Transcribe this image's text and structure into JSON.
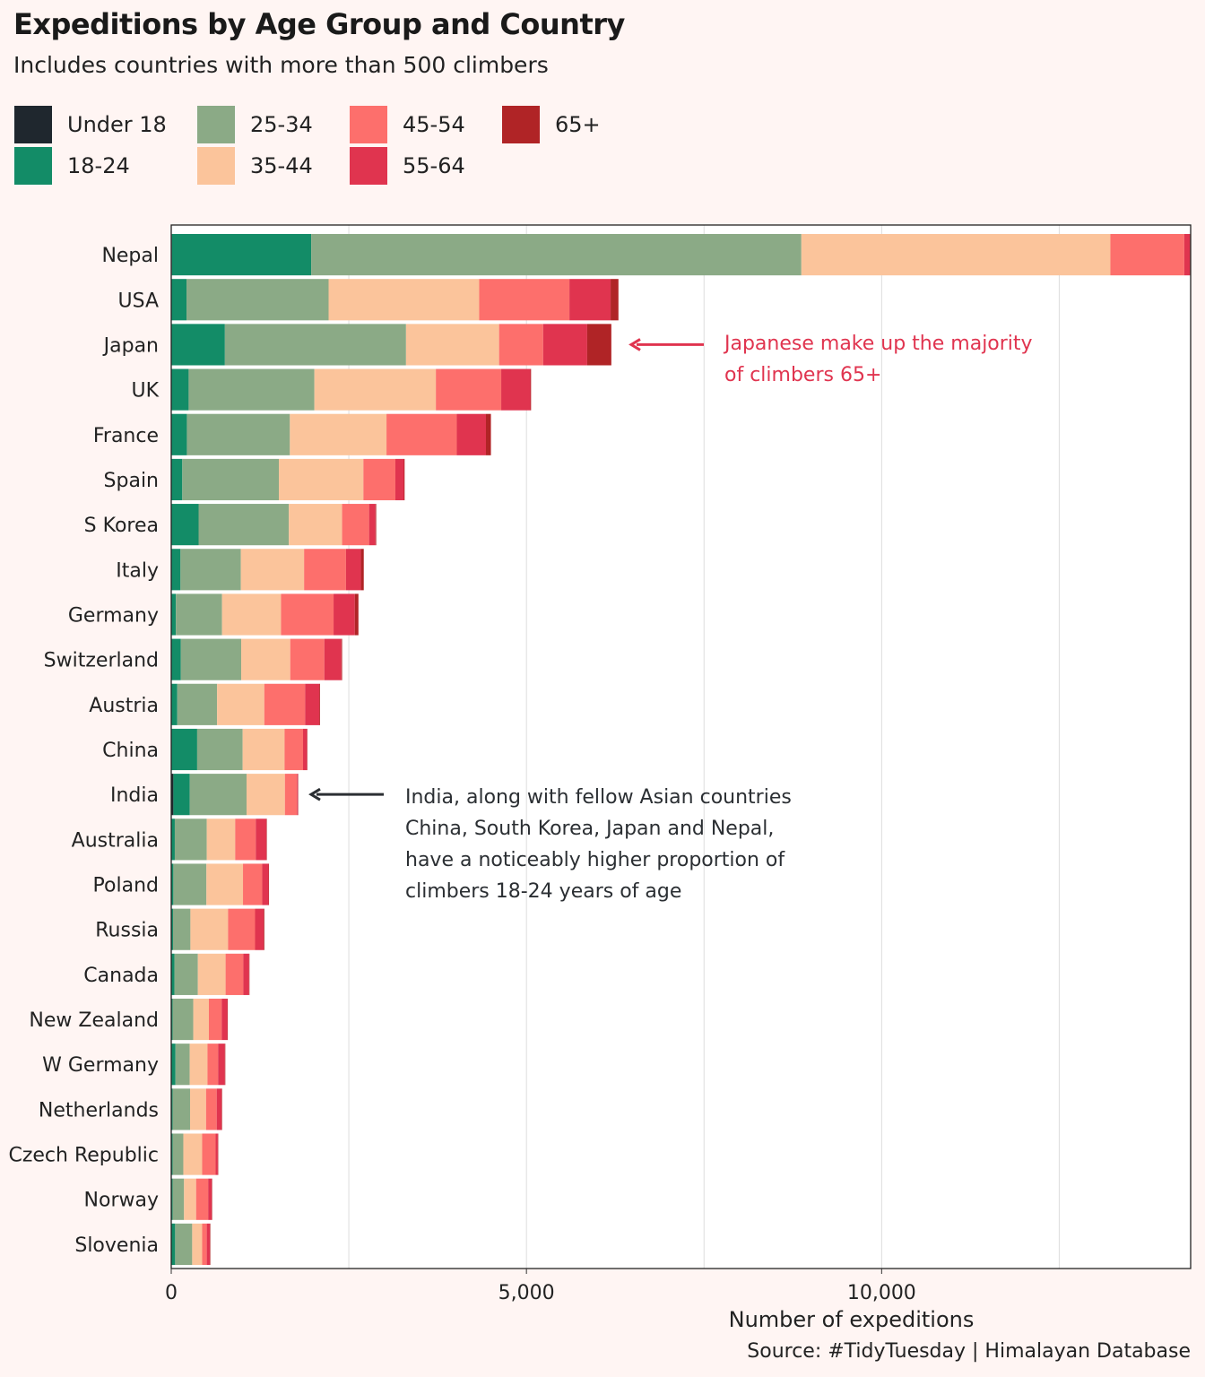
{
  "chart_data": {
    "type": "bar",
    "orientation": "horizontal",
    "stacked": true,
    "title": "Expeditions by Age Group and Country",
    "subtitle": "Includes countries with more than 500 climbers",
    "xlabel": "Number of expeditions",
    "ylabel": "",
    "xlim": [
      0,
      14350
    ],
    "xticks": [
      0,
      5000,
      10000
    ],
    "xtick_labels": [
      "0",
      "5,000",
      "10,000"
    ],
    "grid": "vertical",
    "legend_position": "top-left",
    "source": "Source: #TidyTuesday | Himalayan Database",
    "categories": [
      "Nepal",
      "USA",
      "Japan",
      "UK",
      "France",
      "Spain",
      "S Korea",
      "Italy",
      "Germany",
      "Switzerland",
      "Austria",
      "China",
      "India",
      "Australia",
      "Poland",
      "Russia",
      "Canada",
      "New Zealand",
      "W Germany",
      "Netherlands",
      "Czech Republic",
      "Norway",
      "Slovenia"
    ],
    "series": [
      {
        "name": "Under 18",
        "color": "#1F272E",
        "values": [
          10,
          5,
          5,
          5,
          5,
          5,
          5,
          5,
          5,
          5,
          5,
          5,
          30,
          5,
          5,
          5,
          5,
          5,
          5,
          5,
          5,
          5,
          5
        ]
      },
      {
        "name": "18-24",
        "color": "#138C67",
        "values": [
          1960,
          210,
          750,
          240,
          215,
          150,
          380,
          125,
          60,
          130,
          80,
          360,
          230,
          45,
          25,
          20,
          40,
          15,
          55,
          15,
          15,
          15,
          50
        ]
      },
      {
        "name": "25-34",
        "color": "#8BAA86",
        "values": [
          6900,
          2000,
          2550,
          1770,
          1450,
          1360,
          1270,
          850,
          650,
          850,
          560,
          640,
          800,
          450,
          465,
          245,
          330,
          290,
          200,
          245,
          150,
          160,
          240
        ]
      },
      {
        "name": "35-44",
        "color": "#FBC49B",
        "values": [
          4350,
          2120,
          1310,
          1710,
          1360,
          1190,
          750,
          890,
          830,
          690,
          665,
          590,
          540,
          400,
          515,
          530,
          390,
          220,
          250,
          225,
          265,
          170,
          140
        ]
      },
      {
        "name": "45-54",
        "color": "#FD6F6C",
        "values": [
          1040,
          1270,
          620,
          920,
          990,
          450,
          380,
          590,
          740,
          480,
          575,
          260,
          170,
          290,
          270,
          380,
          250,
          180,
          150,
          150,
          190,
          170,
          65
        ]
      },
      {
        "name": "55-64",
        "color": "#E0344F",
        "values": [
          80,
          580,
          620,
          410,
          410,
          120,
          90,
          210,
          300,
          240,
          200,
          55,
          10,
          150,
          90,
          120,
          80,
          80,
          95,
          70,
          30,
          50,
          45
        ]
      },
      {
        "name": "65+",
        "color": "#B02426",
        "values": [
          5,
          110,
          340,
          10,
          70,
          10,
          10,
          40,
          50,
          10,
          10,
          5,
          5,
          5,
          5,
          10,
          5,
          5,
          5,
          5,
          5,
          5,
          5
        ]
      }
    ],
    "annotations": [
      {
        "country": "Japan",
        "text": "Japanese make up the majority\nof climbers 65+",
        "color": "#E0344F"
      },
      {
        "country": "India",
        "text": "India, along with fellow Asian countries\nChina, South Korea, Japan and Nepal,\nhave a noticeably higher proportion of\nclimbers 18-24 years of age",
        "color": "#2B2F33"
      }
    ]
  }
}
